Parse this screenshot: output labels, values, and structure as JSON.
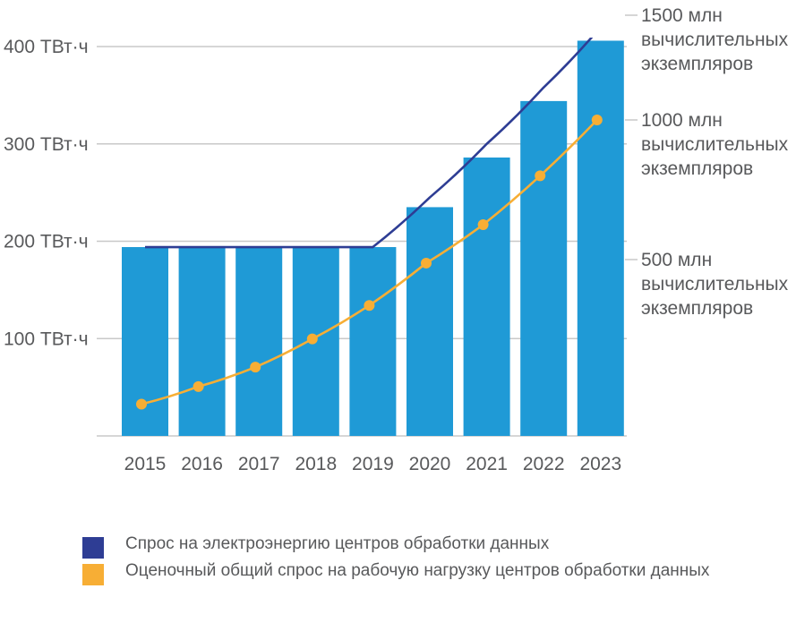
{
  "chart_data": {
    "type": "bar",
    "title": "",
    "xlabel": "",
    "ylabel": "",
    "categories": [
      "2015",
      "2016",
      "2017",
      "2018",
      "2019",
      "2020",
      "2021",
      "2022",
      "2023"
    ],
    "ylim": [
      0,
      400
    ],
    "yticks": [
      {
        "value": 100,
        "label": "100 ТВт·ч"
      },
      {
        "value": 200,
        "label": "200 ТВт·ч"
      },
      {
        "value": 300,
        "label": "300 ТВт·ч"
      },
      {
        "value": 400,
        "label": "400 ТВт·ч"
      }
    ],
    "right_axis_ticks": [
      {
        "value": 500,
        "lines": [
          "500 млн",
          "вычислительных",
          "экземпляров"
        ]
      },
      {
        "value": 1000,
        "lines": [
          "1000 млн",
          "вычислительных",
          "экземпляров"
        ]
      },
      {
        "value": 1500,
        "lines": [
          "1500 млн",
          "вычислительных",
          "экземпляров"
        ]
      }
    ],
    "grid": true,
    "legend_position": "bottom",
    "series": [
      {
        "name": "Спрос на электроэнергию центров обработки данных (бары)",
        "kind": "bar",
        "axis": "left",
        "unit": "ТВт·ч",
        "color": "#1f9ad6",
        "values": [
          194,
          194,
          194,
          194,
          194,
          235,
          286,
          344,
          406
        ]
      },
      {
        "name": "Спрос на электроэнергию центров обработки данных",
        "kind": "line",
        "axis": "left",
        "unit": "ТВт·ч",
        "color": "#2e3d94",
        "values": [
          194,
          194,
          194,
          194,
          194,
          245,
          300,
          358,
          420
        ]
      },
      {
        "name": "Оценочный общий спрос на рабочую нагрузку центров обработки данных",
        "kind": "line",
        "axis": "right",
        "unit": "млн вычислительных экземпляров",
        "color": "#f7ae35",
        "markers": true,
        "values": [
          90,
          140,
          195,
          275,
          370,
          490,
          625,
          800,
          1000
        ]
      }
    ]
  },
  "legend": {
    "items": [
      {
        "label": "Спрос на электроэнергию центров обработки данных",
        "color": "#2e3d94"
      },
      {
        "label": "Оценочный общий спрос на рабочую нагрузку центров обработки данных",
        "color": "#f7ae35"
      }
    ]
  }
}
